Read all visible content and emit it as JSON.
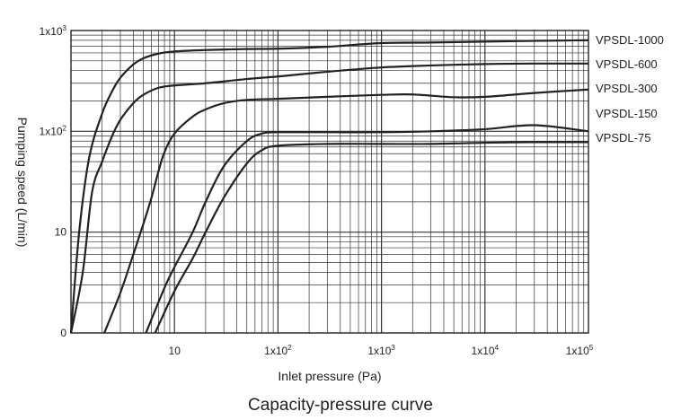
{
  "caption": "Capacity-pressure curve",
  "chart_data": {
    "type": "line",
    "xscale": "log",
    "yscale": "log",
    "xlim": [
      1,
      100000
    ],
    "ylim": [
      1,
      1000
    ],
    "grid": true,
    "xlabel": "Inlet pressure (Pa)",
    "ylabel": "Pumping speed (L/min)",
    "x_ticks": [
      {
        "value": 10,
        "base": "10",
        "exp": ""
      },
      {
        "value": 100,
        "base": "1x10",
        "exp": "2"
      },
      {
        "value": 1000,
        "base": "1x10",
        "exp": "3"
      },
      {
        "value": 10000,
        "base": "1x10",
        "exp": "4"
      },
      {
        "value": 100000,
        "base": "1x10",
        "exp": "5"
      }
    ],
    "y_ticks": [
      {
        "value": 1,
        "base": "0",
        "exp": ""
      },
      {
        "value": 10,
        "base": "10",
        "exp": ""
      },
      {
        "value": 100,
        "base": "1x10",
        "exp": "2"
      },
      {
        "value": 1000,
        "base": "1x10",
        "exp": "3"
      }
    ],
    "series": [
      {
        "name": "VPSDL-1000",
        "color": "#222222",
        "x": [
          1,
          1.2,
          1.5,
          2,
          2.5,
          3,
          4,
          5,
          7,
          10,
          20,
          50,
          100,
          300,
          1000,
          3000,
          10000,
          30000,
          100000
        ],
        "y": [
          1,
          10,
          55,
          150,
          250,
          340,
          460,
          530,
          590,
          620,
          640,
          655,
          660,
          690,
          750,
          760,
          775,
          790,
          800
        ]
      },
      {
        "name": "VPSDL-600",
        "color": "#222222",
        "x": [
          1,
          1.3,
          1.6,
          2,
          2.5,
          3,
          4,
          5,
          7,
          10,
          20,
          50,
          100,
          300,
          1000,
          3000,
          10000,
          30000,
          100000
        ],
        "y": [
          1,
          4,
          25,
          50,
          90,
          130,
          190,
          230,
          270,
          285,
          300,
          330,
          350,
          390,
          430,
          450,
          465,
          470,
          470
        ]
      },
      {
        "name": "VPSDL-300",
        "color": "#222222",
        "x": [
          2.1,
          3,
          4,
          5,
          6,
          7,
          8,
          10,
          15,
          20,
          30,
          50,
          100,
          300,
          1000,
          2000,
          5000,
          10000,
          30000,
          100000
        ],
        "y": [
          1,
          2.5,
          6,
          12,
          22,
          40,
          62,
          95,
          140,
          165,
          190,
          205,
          210,
          220,
          230,
          232,
          218,
          220,
          240,
          260
        ]
      },
      {
        "name": "VPSDL-150",
        "color": "#222222",
        "x": [
          5.3,
          8,
          10,
          15,
          20,
          30,
          50,
          70,
          100,
          300,
          1000,
          3000,
          10000,
          30000,
          100000
        ],
        "y": [
          1,
          2.8,
          4.5,
          10,
          20,
          45,
          80,
          95,
          98,
          98,
          98,
          100,
          105,
          115,
          100
        ]
      },
      {
        "name": "VPSDL-75",
        "color": "#222222",
        "x": [
          6.5,
          10,
          15,
          20,
          30,
          50,
          70,
          100,
          300,
          1000,
          3000,
          10000,
          30000,
          100000
        ],
        "y": [
          1,
          2.6,
          5.5,
          10,
          22,
          48,
          65,
          72,
          75,
          75,
          75,
          77,
          78,
          78
        ]
      }
    ]
  }
}
